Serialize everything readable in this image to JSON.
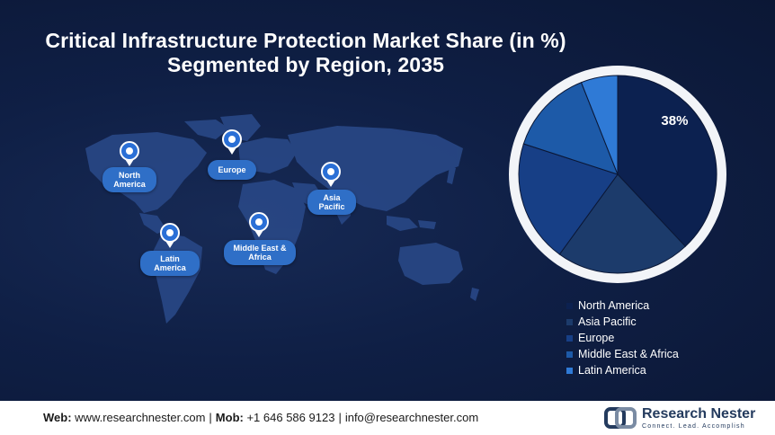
{
  "title_line1": "Critical Infrastructure Protection Market Share (in %)",
  "title_line2": "Segmented by Region, 2035",
  "map_labels": {
    "north_america": "North America",
    "europe": "Europe",
    "asia_pacific": "Asia Pacific",
    "latin_america": "Latin America",
    "middle_east_africa": "Middle East & Africa"
  },
  "chart_data": {
    "type": "pie",
    "title": "Critical Infrastructure Protection Market Share (in %) Segmented by Region, 2035",
    "categories": [
      "North America",
      "Asia Pacific",
      "Europe",
      "Middle East & Africa",
      "Latin America"
    ],
    "values": [
      38,
      22,
      20,
      14,
      6
    ],
    "labels": [
      "38%",
      "",
      "",
      "",
      ""
    ],
    "colors": [
      "#0c2150",
      "#1c3b6b",
      "#173f86",
      "#1d5aa8",
      "#2f7ad6"
    ],
    "legend_position": "bottom-right"
  },
  "footer": {
    "web_label": "Web:",
    "web": "www.researchnester.com",
    "mob_label": "Mob:",
    "mob": "+1 646 586 9123",
    "email": "info@researchnester.com",
    "brand_name": "Research Nester",
    "brand_tagline": "Connect. Lead. Accomplish"
  }
}
